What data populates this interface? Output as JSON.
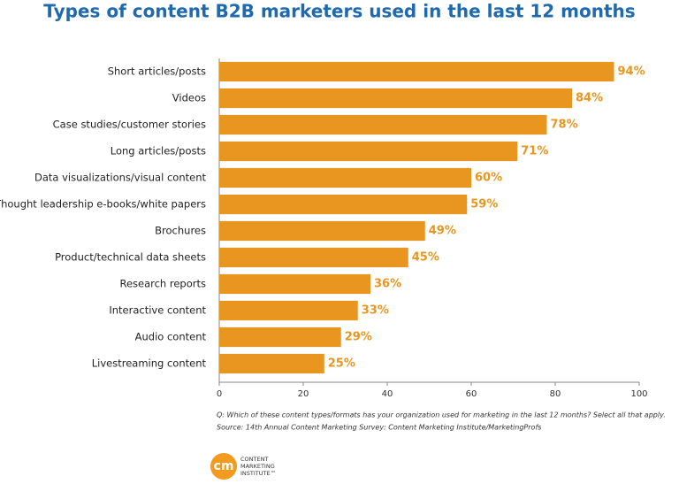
{
  "chart_data": {
    "type": "bar",
    "orientation": "horizontal",
    "title": "Types of content B2B marketers used in the last 12 months",
    "categories": [
      "Short articles/posts",
      "Videos",
      "Case studies/customer stories",
      "Long articles/posts",
      "Data visualizations/visual content",
      "Thought leadership e-books/white papers",
      "Brochures",
      "Product/technical data sheets",
      "Research reports",
      "Interactive content",
      "Audio content",
      "Livestreaming content"
    ],
    "values": [
      94,
      84,
      78,
      71,
      60,
      59,
      49,
      45,
      36,
      33,
      29,
      25
    ],
    "value_labels": [
      "94%",
      "84%",
      "78%",
      "71%",
      "60%",
      "59%",
      "49%",
      "45%",
      "36%",
      "33%",
      "29%",
      "25%"
    ],
    "color": "#e8961f",
    "xlim": [
      0,
      100
    ],
    "xticks": [
      0,
      20,
      40,
      60,
      80,
      100
    ],
    "grid": false,
    "notes": [
      "Q: Which of these content types/formats has your organization used for marketing in the last 12 months? Select all that apply.",
      "Source: 14th Annual Content Marketing Survey: Content Marketing Institute/MarketingProfs"
    ]
  },
  "logo": {
    "mark": "cm",
    "lines": [
      "CONTENT",
      "MARKETING",
      "INSTITUTE™"
    ]
  }
}
